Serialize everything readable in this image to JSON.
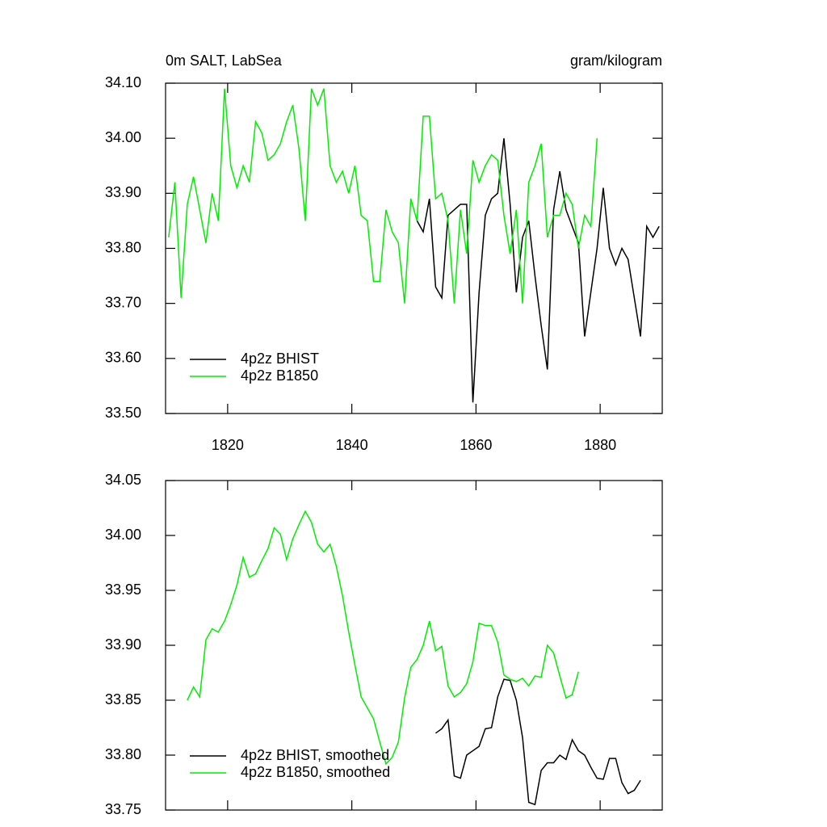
{
  "chart_data": [
    {
      "type": "line",
      "title": "0m SALT, LabSea",
      "subtitle": "gram/kilogram",
      "xlim": [
        1810,
        1890
      ],
      "xticks": [
        1820,
        1840,
        1860,
        1880
      ],
      "show_xtick_labels": true,
      "ylim": [
        33.5,
        34.1
      ],
      "yticks": [
        {
          "value": 33.5,
          "label": "33.50"
        },
        {
          "value": 33.6,
          "label": "33.60"
        },
        {
          "value": 33.7,
          "label": "33.70"
        },
        {
          "value": 33.8,
          "label": "33.80"
        },
        {
          "value": 33.9,
          "label": "33.90"
        },
        {
          "value": 34.0,
          "label": "34.00"
        },
        {
          "value": 34.1,
          "label": "34.10"
        }
      ],
      "legend": "lower left",
      "series": [
        {
          "name": "4p2z BHIST",
          "color": "#000000",
          "x": [
            1850.5,
            1851.5,
            1852.5,
            1853.5,
            1854.5,
            1855.5,
            1856.5,
            1857.5,
            1858.5,
            1859.5,
            1860.5,
            1861.5,
            1862.5,
            1863.5,
            1864.5,
            1865.5,
            1866.5,
            1867.5,
            1868.5,
            1869.5,
            1870.5,
            1871.5,
            1872.5,
            1873.5,
            1874.5,
            1875.5,
            1876.5,
            1877.5,
            1878.5,
            1879.5,
            1880.5,
            1881.5,
            1882.5,
            1883.5,
            1884.5,
            1885.5,
            1886.5,
            1887.5,
            1888.5,
            1889.5
          ],
          "values": [
            33.85,
            33.83,
            33.89,
            33.73,
            33.71,
            33.86,
            33.87,
            33.88,
            33.88,
            33.52,
            33.72,
            33.86,
            33.89,
            33.9,
            34.0,
            33.88,
            33.72,
            33.82,
            33.85,
            33.75,
            33.66,
            33.58,
            33.87,
            33.94,
            33.87,
            33.84,
            33.81,
            33.64,
            33.72,
            33.8,
            33.91,
            33.8,
            33.77,
            33.8,
            33.78,
            33.71,
            33.64,
            33.84,
            33.82,
            33.84
          ]
        },
        {
          "name": "4p2z B1850",
          "color": "#00ee00",
          "x": [
            1810.5,
            1811.5,
            1812.5,
            1813.5,
            1814.5,
            1815.5,
            1816.5,
            1817.5,
            1818.5,
            1819.5,
            1820.5,
            1821.5,
            1822.5,
            1823.5,
            1824.5,
            1825.5,
            1826.5,
            1827.5,
            1828.5,
            1829.5,
            1830.5,
            1831.5,
            1832.5,
            1833.5,
            1834.5,
            1835.5,
            1836.5,
            1837.5,
            1838.5,
            1839.5,
            1840.5,
            1841.5,
            1842.5,
            1843.5,
            1844.5,
            1845.5,
            1846.5,
            1847.5,
            1848.5,
            1849.5,
            1850.5,
            1851.5,
            1852.5,
            1853.5,
            1854.5,
            1855.5,
            1856.5,
            1857.5,
            1858.5,
            1859.5,
            1860.5,
            1861.5,
            1862.5,
            1863.5,
            1864.5,
            1865.5,
            1866.5,
            1867.5,
            1868.5,
            1869.5,
            1870.5,
            1871.5,
            1872.5,
            1873.5,
            1874.5,
            1875.5,
            1876.5,
            1877.5,
            1878.5,
            1879.5
          ],
          "values": [
            33.82,
            33.92,
            33.71,
            33.88,
            33.93,
            33.87,
            33.81,
            33.9,
            33.85,
            34.09,
            33.95,
            33.91,
            33.95,
            33.92,
            34.03,
            34.01,
            33.96,
            33.97,
            33.99,
            34.03,
            34.06,
            33.98,
            33.85,
            34.09,
            34.06,
            34.09,
            33.95,
            33.92,
            33.94,
            33.9,
            33.95,
            33.86,
            33.85,
            33.74,
            33.74,
            33.87,
            33.83,
            33.81,
            33.7,
            33.89,
            33.85,
            34.04,
            34.04,
            33.89,
            33.9,
            33.85,
            33.7,
            33.87,
            33.79,
            33.96,
            33.92,
            33.95,
            33.97,
            33.96,
            33.86,
            33.79,
            33.87,
            33.7,
            33.92,
            33.95,
            33.99,
            33.82,
            33.86,
            33.86,
            33.9,
            33.88,
            33.8,
            33.86,
            33.84,
            34.0
          ]
        }
      ]
    },
    {
      "type": "line",
      "xlim": [
        1810,
        1890
      ],
      "xticks": [
        1820,
        1840,
        1860,
        1880
      ],
      "show_xtick_labels": false,
      "ylim": [
        33.75,
        34.05
      ],
      "yticks": [
        33.75,
        {
          "value": 33.8,
          "label": "33.80"
        },
        33.85,
        {
          "value": 33.9,
          "label": "33.90"
        },
        33.95,
        {
          "value": 34.0,
          "label": "34.00"
        },
        34.05
      ],
      "legend": "lower left",
      "series": [
        {
          "name": "4p2z BHIST, smoothed",
          "color": "#000000",
          "x": [
            1853.5,
            1854.5,
            1855.5,
            1856.5,
            1857.5,
            1858.5,
            1859.5,
            1860.5,
            1861.5,
            1862.5,
            1863.5,
            1864.5,
            1865.5,
            1866.5,
            1867.5,
            1868.5,
            1869.5,
            1870.5,
            1871.5,
            1872.5,
            1873.5,
            1874.5,
            1875.5,
            1876.5,
            1877.5,
            1878.5,
            1879.5,
            1880.5,
            1881.5,
            1882.5,
            1883.5,
            1884.5,
            1885.5,
            1886.5
          ],
          "values": [
            33.82,
            33.824,
            33.832,
            33.781,
            33.779,
            33.8,
            33.804,
            33.808,
            33.824,
            33.825,
            33.853,
            33.869,
            33.868,
            33.85,
            33.816,
            33.757,
            33.755,
            33.786,
            33.793,
            33.793,
            33.8,
            33.796,
            33.814,
            33.804,
            33.8,
            33.789,
            33.779,
            33.778,
            33.797,
            33.797,
            33.775,
            33.765,
            33.768,
            33.777
          ]
        },
        {
          "name": "4p2z B1850, smoothed",
          "color": "#00ee00",
          "x": [
            1813.5,
            1814.5,
            1815.5,
            1816.5,
            1817.5,
            1818.5,
            1819.5,
            1820.5,
            1821.5,
            1822.5,
            1823.5,
            1824.5,
            1825.5,
            1826.5,
            1827.5,
            1828.5,
            1829.5,
            1830.5,
            1831.5,
            1832.5,
            1833.5,
            1834.5,
            1835.5,
            1836.5,
            1837.5,
            1838.5,
            1839.5,
            1840.5,
            1841.5,
            1842.5,
            1843.5,
            1844.5,
            1845.5,
            1846.5,
            1847.5,
            1848.5,
            1849.5,
            1850.5,
            1851.5,
            1852.5,
            1853.5,
            1854.5,
            1855.5,
            1856.5,
            1857.5,
            1858.5,
            1859.5,
            1860.5,
            1861.5,
            1862.5,
            1863.5,
            1864.5,
            1865.5,
            1866.5,
            1867.5,
            1868.5,
            1869.5,
            1870.5,
            1871.5,
            1872.5,
            1873.5,
            1874.5,
            1875.5,
            1876.5
          ],
          "values": [
            33.85,
            33.862,
            33.853,
            33.905,
            33.915,
            33.912,
            33.922,
            33.937,
            33.955,
            33.98,
            33.962,
            33.965,
            33.977,
            33.988,
            34.007,
            34.001,
            33.978,
            33.997,
            34.01,
            34.022,
            34.012,
            33.992,
            33.985,
            33.992,
            33.972,
            33.945,
            33.912,
            33.882,
            33.853,
            33.843,
            33.833,
            33.812,
            33.792,
            33.798,
            33.812,
            33.852,
            33.88,
            33.887,
            33.9,
            33.922,
            33.895,
            33.899,
            33.863,
            33.853,
            33.857,
            33.865,
            33.885,
            33.92,
            33.918,
            33.918,
            33.903,
            33.873,
            33.869,
            33.867,
            33.87,
            33.863,
            33.872,
            33.871,
            33.9,
            33.893,
            33.872,
            33.852,
            33.855,
            33.876
          ]
        }
      ]
    }
  ]
}
